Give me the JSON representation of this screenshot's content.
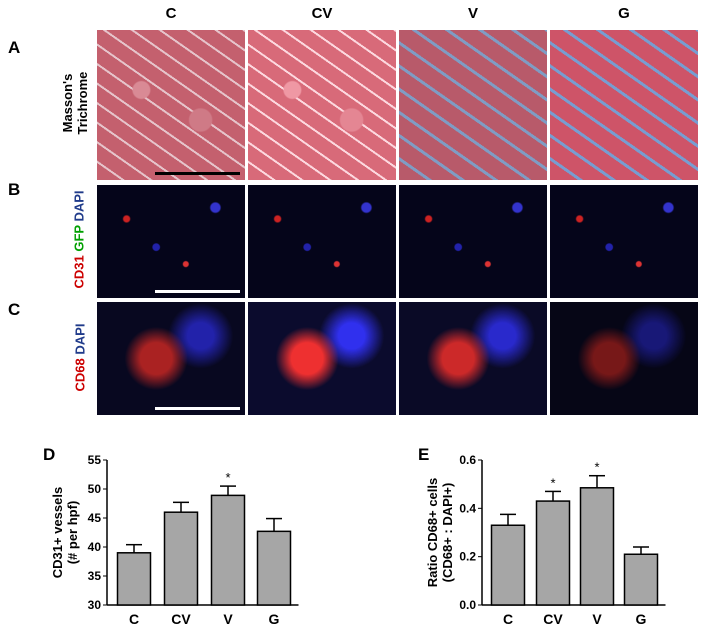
{
  "columns": [
    "C",
    "CV",
    "V",
    "G"
  ],
  "rows": [
    {
      "letter": "A",
      "label_lines": [
        "Masson's",
        "Trichrome"
      ]
    },
    {
      "letter": "B",
      "label_parts": [
        {
          "text": "CD31",
          "color": "#cc0000"
        },
        {
          "text": "GFP",
          "color": "#00a000"
        },
        {
          "text": "DAPI",
          "color": "#1f3a8a"
        }
      ]
    },
    {
      "letter": "C",
      "label_parts": [
        {
          "text": "CD68",
          "color": "#cc0000"
        },
        {
          "text": "DAPI",
          "color": "#1f3a8a"
        }
      ]
    }
  ],
  "chart_data": [
    {
      "panel": "D",
      "type": "bar",
      "categories": [
        "C",
        "CV",
        "V",
        "G"
      ],
      "values": [
        39.0,
        46.0,
        48.9,
        42.7
      ],
      "error_upper": [
        40.4,
        47.7,
        50.5,
        44.9
      ],
      "significance": [
        "",
        "",
        "*",
        ""
      ],
      "ylabel_lines": [
        "CD31+ vessels",
        "(# per hpf)"
      ],
      "ylim": [
        30,
        55
      ],
      "yticks": [
        30,
        35,
        40,
        45,
        50,
        55
      ],
      "bar_color": "#a6a6a6"
    },
    {
      "panel": "E",
      "type": "bar",
      "categories": [
        "C",
        "CV",
        "V",
        "G"
      ],
      "values": [
        0.33,
        0.43,
        0.485,
        0.21
      ],
      "error_upper": [
        0.375,
        0.47,
        0.535,
        0.24
      ],
      "significance": [
        "",
        "*",
        "*",
        ""
      ],
      "ylabel_lines": [
        "Ratio CD68+ cells",
        "(CD68+ : DAPI+)"
      ],
      "ylim": [
        0,
        0.6
      ],
      "yticks": [
        "0.0",
        "0.2",
        "0.4",
        "0.6"
      ],
      "bar_color": "#a6a6a6"
    }
  ]
}
